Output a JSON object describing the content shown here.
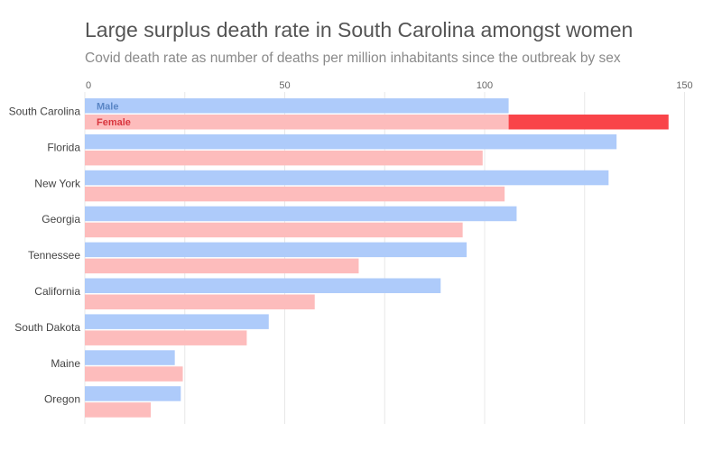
{
  "title": "Large surplus death rate in South Carolina amongst women",
  "subtitle": "Covid death rate as number of deaths per million inhabitants since the outbreak by sex",
  "colors": {
    "male": "#aecbfa",
    "female": "#fdbcbc",
    "female_highlight": "#f94449",
    "male_label": "#5a86c5",
    "female_label": "#d9363e",
    "grid": "#e8e8e8",
    "tick_text": "#666666",
    "category_text": "#444444"
  },
  "chart_data": {
    "type": "bar",
    "orientation": "horizontal",
    "categories": [
      "South Carolina",
      "Florida",
      "New York",
      "Georgia",
      "Tennessee",
      "California",
      "South Dakota",
      "Maine",
      "Oregon"
    ],
    "series": [
      {
        "name": "Male",
        "values": [
          106,
          133,
          131,
          108,
          95.5,
          89,
          46,
          22.5,
          24
        ]
      },
      {
        "name": "Female",
        "values": [
          146,
          99.5,
          105,
          94.5,
          68.5,
          57.5,
          40.5,
          24.5,
          16.5
        ]
      }
    ],
    "highlight": {
      "category": "South Carolina",
      "series": "Female",
      "note": "excess of female rate over male rate shown in darker red"
    },
    "xlim": [
      0,
      150
    ],
    "xticks": [
      0,
      50,
      100,
      150
    ],
    "grid": true,
    "legend": "inline labels inside first category bars"
  }
}
